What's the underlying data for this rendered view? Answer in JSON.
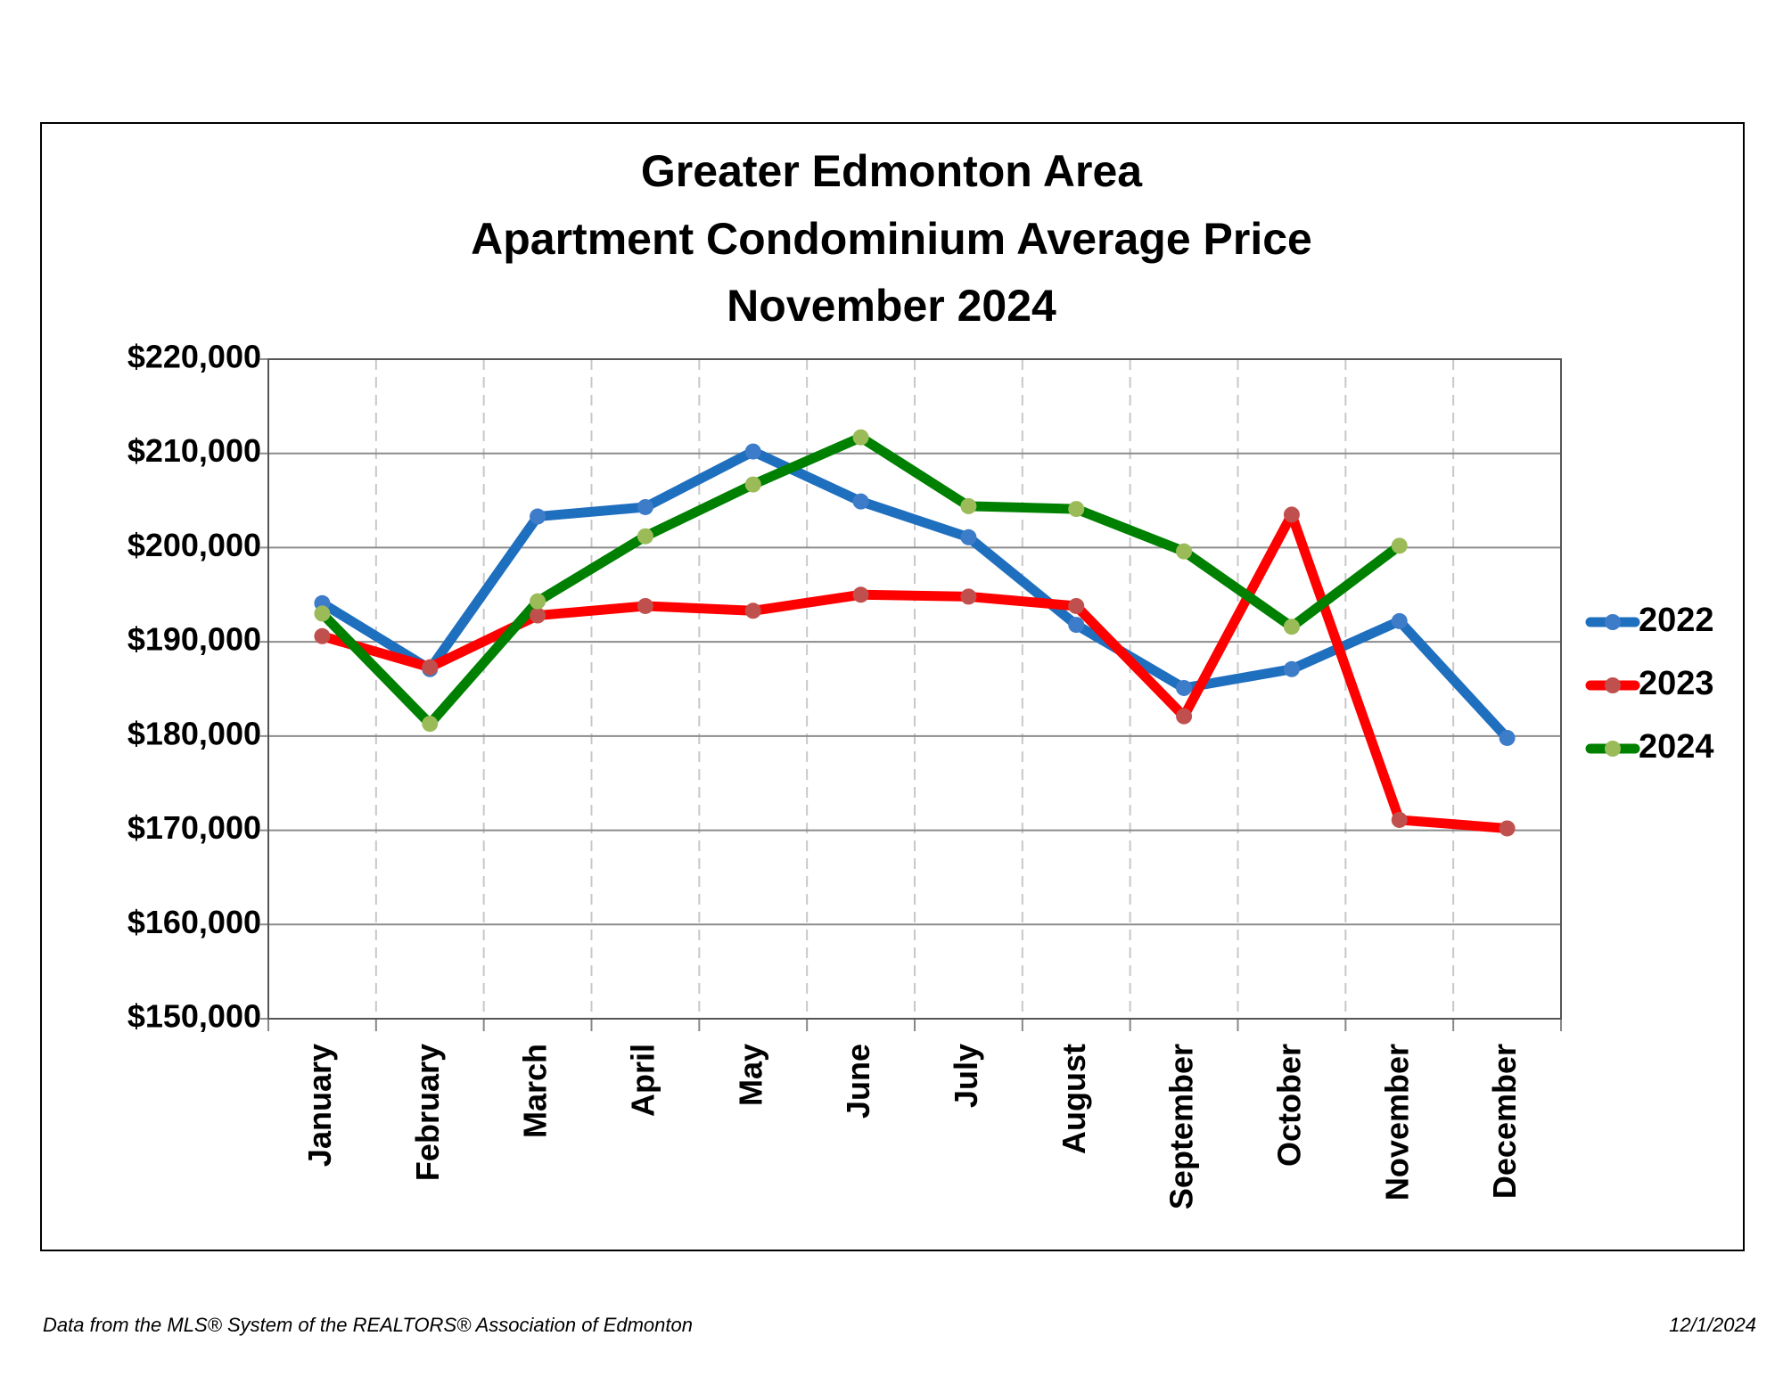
{
  "chart_data": {
    "type": "line",
    "title": [
      "Greater Edmonton Area",
      "Apartment Condominium Average Price",
      "November 2024"
    ],
    "categories": [
      "January",
      "February",
      "March",
      "April",
      "May",
      "June",
      "July",
      "August",
      "September",
      "October",
      "November",
      "December"
    ],
    "series": [
      {
        "name": "2022",
        "color": "#1f6fbf",
        "marker_color": "#3d7cc9",
        "values": [
          194100,
          187100,
          203300,
          204300,
          210200,
          204900,
          201100,
          191800,
          185100,
          187100,
          192200,
          179800
        ]
      },
      {
        "name": "2023",
        "color": "#ff0000",
        "marker_color": "#c0504d",
        "values": [
          190600,
          187300,
          192800,
          193800,
          193300,
          195000,
          194800,
          193800,
          182100,
          203500,
          171100,
          170200
        ]
      },
      {
        "name": "2024",
        "color": "#008000",
        "marker_color": "#9bbb59",
        "values": [
          193000,
          181300,
          194300,
          201200,
          206700,
          211700,
          204400,
          204100,
          199600,
          191600,
          200200,
          null
        ]
      }
    ],
    "ylim": [
      150000,
      220000
    ],
    "yticks": [
      {
        "value": 150000,
        "label": "$150,000"
      },
      {
        "value": 160000,
        "label": "$160,000"
      },
      {
        "value": 170000,
        "label": "$170,000"
      },
      {
        "value": 180000,
        "label": "$180,000"
      },
      {
        "value": 190000,
        "label": "$190,000"
      },
      {
        "value": 200000,
        "label": "$200,000"
      },
      {
        "value": 210000,
        "label": "$210,000"
      },
      {
        "value": 220000,
        "label": "$220,000"
      }
    ],
    "grid": true,
    "legend": "right"
  },
  "footer": {
    "source": "Data from the MLS® System of the REALTORS® Association of Edmonton",
    "date": "12/1/2024"
  }
}
